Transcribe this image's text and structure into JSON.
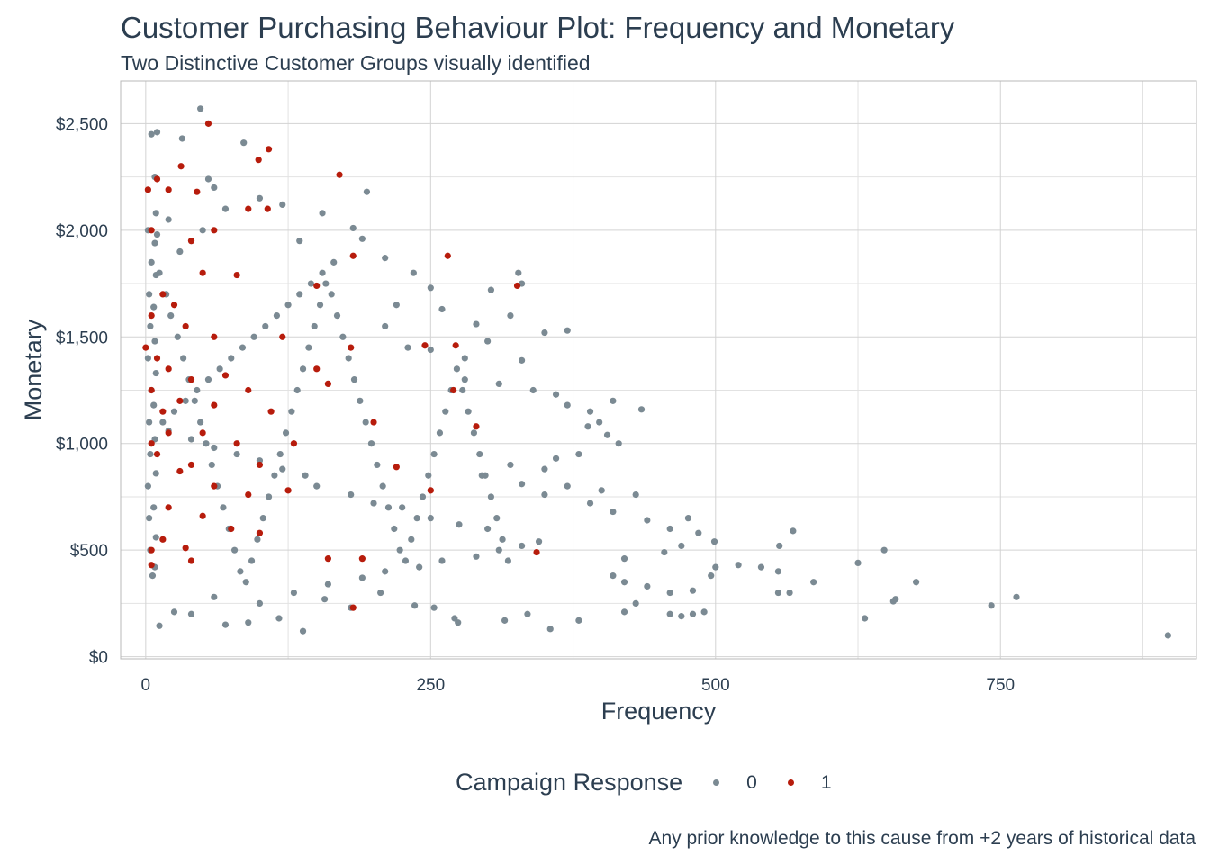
{
  "chart_data": {
    "type": "scatter",
    "title": "Customer Purchasing Behaviour Plot: Frequency and Monetary",
    "subtitle": "Two Distinctive Customer Groups visually identified",
    "caption": "Any prior knowledge to this cause from +2 years of historical data",
    "xlabel": "Frequency",
    "ylabel": "Monetary",
    "xlim": [
      -22,
      922
    ],
    "ylim": [
      -10,
      2700
    ],
    "x_ticks": [
      0,
      250,
      500,
      750
    ],
    "x_tick_labels": [
      "0",
      "250",
      "500",
      "750"
    ],
    "y_ticks": [
      0,
      500,
      1000,
      1500,
      2000,
      2500
    ],
    "y_tick_labels": [
      "$0",
      "$500",
      "$1,000",
      "$1,500",
      "$2,000",
      "$2,500"
    ],
    "grid": true,
    "legend": {
      "title": "Campaign Response",
      "position": "bottom"
    },
    "colors": {
      "0": "#7b8a93",
      "1": "#b71c0c",
      "text": "#2c3e50",
      "grid": "#d3d3d3"
    },
    "series": [
      {
        "name": "0",
        "color": "#7b8a93",
        "points": [
          [
            5,
            2450
          ],
          [
            10,
            2460
          ],
          [
            48,
            2570
          ],
          [
            32,
            2430
          ],
          [
            86,
            2410
          ],
          [
            55,
            2240
          ],
          [
            8,
            2250
          ],
          [
            60,
            2200
          ],
          [
            120,
            2120
          ],
          [
            155,
            2080
          ],
          [
            194,
            2180
          ],
          [
            182,
            2010
          ],
          [
            100,
            2150
          ],
          [
            70,
            2100
          ],
          [
            135,
            1950
          ],
          [
            190,
            1960
          ],
          [
            210,
            1870
          ],
          [
            250,
            1730
          ],
          [
            235,
            1800
          ],
          [
            303,
            1720
          ],
          [
            327,
            1800
          ],
          [
            330,
            1750
          ],
          [
            220,
            1650
          ],
          [
            260,
            1630
          ],
          [
            290,
            1560
          ],
          [
            320,
            1600
          ],
          [
            350,
            1520
          ],
          [
            370,
            1530
          ],
          [
            210,
            1550
          ],
          [
            230,
            1450
          ],
          [
            250,
            1440
          ],
          [
            280,
            1400
          ],
          [
            300,
            1480
          ],
          [
            330,
            1390
          ],
          [
            280,
            1300
          ],
          [
            310,
            1280
          ],
          [
            340,
            1250
          ],
          [
            360,
            1230
          ],
          [
            390,
            1150
          ],
          [
            410,
            1200
          ],
          [
            435,
            1160
          ],
          [
            370,
            1180
          ],
          [
            398,
            1100
          ],
          [
            388,
            1080
          ],
          [
            405,
            1040
          ],
          [
            415,
            1000
          ],
          [
            380,
            950
          ],
          [
            360,
            930
          ],
          [
            350,
            880
          ],
          [
            320,
            900
          ],
          [
            295,
            850
          ],
          [
            330,
            810
          ],
          [
            350,
            760
          ],
          [
            370,
            800
          ],
          [
            400,
            780
          ],
          [
            430,
            760
          ],
          [
            390,
            720
          ],
          [
            410,
            680
          ],
          [
            440,
            640
          ],
          [
            460,
            600
          ],
          [
            476,
            650
          ],
          [
            485,
            580
          ],
          [
            499,
            540
          ],
          [
            470,
            520
          ],
          [
            455,
            490
          ],
          [
            420,
            460
          ],
          [
            410,
            380
          ],
          [
            420,
            350
          ],
          [
            440,
            330
          ],
          [
            460,
            300
          ],
          [
            480,
            310
          ],
          [
            496,
            380
          ],
          [
            500,
            420
          ],
          [
            520,
            430
          ],
          [
            540,
            420
          ],
          [
            555,
            400
          ],
          [
            556,
            520
          ],
          [
            568,
            590
          ],
          [
            555,
            300
          ],
          [
            565,
            300
          ],
          [
            586,
            350
          ],
          [
            625,
            440
          ],
          [
            631,
            180
          ],
          [
            648,
            500
          ],
          [
            658,
            270
          ],
          [
            656,
            260
          ],
          [
            676,
            350
          ],
          [
            742,
            240
          ],
          [
            764,
            280
          ],
          [
            897,
            100
          ],
          [
            480,
            200
          ],
          [
            490,
            210
          ],
          [
            460,
            200
          ],
          [
            470,
            190
          ],
          [
            430,
            250
          ],
          [
            420,
            210
          ],
          [
            380,
            170
          ],
          [
            355,
            130
          ],
          [
            335,
            200
          ],
          [
            315,
            170
          ],
          [
            274,
            160
          ],
          [
            271,
            180
          ],
          [
            253,
            230
          ],
          [
            236,
            240
          ],
          [
            206,
            300
          ],
          [
            180,
            230
          ],
          [
            157,
            270
          ],
          [
            138,
            120
          ],
          [
            117,
            180
          ],
          [
            90,
            160
          ],
          [
            70,
            150
          ],
          [
            40,
            200
          ],
          [
            12,
            145
          ],
          [
            25,
            210
          ],
          [
            60,
            280
          ],
          [
            100,
            250
          ],
          [
            130,
            300
          ],
          [
            160,
            340
          ],
          [
            190,
            370
          ],
          [
            210,
            400
          ],
          [
            240,
            420
          ],
          [
            260,
            450
          ],
          [
            290,
            470
          ],
          [
            310,
            500
          ],
          [
            330,
            520
          ],
          [
            345,
            540
          ],
          [
            300,
            600
          ],
          [
            275,
            620
          ],
          [
            250,
            650
          ],
          [
            225,
            700
          ],
          [
            200,
            720
          ],
          [
            180,
            760
          ],
          [
            150,
            800
          ],
          [
            140,
            850
          ],
          [
            120,
            880
          ],
          [
            100,
            920
          ],
          [
            80,
            950
          ],
          [
            60,
            980
          ],
          [
            40,
            1020
          ],
          [
            20,
            1060
          ],
          [
            15,
            1100
          ],
          [
            25,
            1150
          ],
          [
            35,
            1200
          ],
          [
            45,
            1250
          ],
          [
            55,
            1300
          ],
          [
            65,
            1350
          ],
          [
            75,
            1400
          ],
          [
            85,
            1450
          ],
          [
            95,
            1500
          ],
          [
            105,
            1550
          ],
          [
            115,
            1600
          ],
          [
            125,
            1650
          ],
          [
            135,
            1700
          ],
          [
            145,
            1750
          ],
          [
            155,
            1800
          ],
          [
            165,
            1850
          ],
          [
            30,
            1900
          ],
          [
            40,
            1950
          ],
          [
            50,
            2000
          ],
          [
            20,
            2050
          ],
          [
            10,
            1980
          ],
          [
            12,
            1800
          ],
          [
            18,
            1700
          ],
          [
            22,
            1600
          ],
          [
            28,
            1500
          ],
          [
            33,
            1400
          ],
          [
            38,
            1300
          ],
          [
            43,
            1200
          ],
          [
            48,
            1100
          ],
          [
            53,
            1000
          ],
          [
            58,
            900
          ],
          [
            63,
            800
          ],
          [
            68,
            700
          ],
          [
            73,
            600
          ],
          [
            78,
            500
          ],
          [
            83,
            400
          ],
          [
            88,
            350
          ],
          [
            93,
            450
          ],
          [
            98,
            550
          ],
          [
            103,
            650
          ],
          [
            108,
            750
          ],
          [
            113,
            850
          ],
          [
            118,
            950
          ],
          [
            123,
            1050
          ],
          [
            128,
            1150
          ],
          [
            133,
            1250
          ],
          [
            138,
            1350
          ],
          [
            143,
            1450
          ],
          [
            148,
            1550
          ],
          [
            153,
            1650
          ],
          [
            158,
            1750
          ],
          [
            163,
            1700
          ],
          [
            168,
            1600
          ],
          [
            173,
            1500
          ],
          [
            178,
            1400
          ],
          [
            183,
            1300
          ],
          [
            188,
            1200
          ],
          [
            193,
            1100
          ],
          [
            198,
            1000
          ],
          [
            203,
            900
          ],
          [
            208,
            800
          ],
          [
            213,
            700
          ],
          [
            218,
            600
          ],
          [
            223,
            500
          ],
          [
            228,
            450
          ],
          [
            233,
            550
          ],
          [
            238,
            650
          ],
          [
            243,
            750
          ],
          [
            248,
            850
          ],
          [
            253,
            950
          ],
          [
            258,
            1050
          ],
          [
            263,
            1150
          ],
          [
            268,
            1250
          ],
          [
            273,
            1350
          ],
          [
            278,
            1250
          ],
          [
            283,
            1150
          ],
          [
            288,
            1050
          ],
          [
            293,
            950
          ],
          [
            298,
            850
          ],
          [
            303,
            750
          ],
          [
            308,
            650
          ],
          [
            313,
            550
          ],
          [
            318,
            450
          ],
          [
            6,
            380
          ],
          [
            4,
            500
          ],
          [
            3,
            650
          ],
          [
            2,
            800
          ],
          [
            4,
            950
          ],
          [
            3,
            1100
          ],
          [
            5,
            1250
          ],
          [
            2,
            1400
          ],
          [
            4,
            1550
          ],
          [
            3,
            1700
          ],
          [
            5,
            1850
          ],
          [
            2,
            2000
          ],
          [
            8,
            420
          ],
          [
            9,
            560
          ],
          [
            7,
            700
          ],
          [
            9,
            860
          ],
          [
            8,
            1020
          ],
          [
            7,
            1180
          ],
          [
            9,
            1330
          ],
          [
            8,
            1480
          ],
          [
            7,
            1640
          ],
          [
            9,
            1790
          ],
          [
            8,
            1940
          ],
          [
            9,
            2080
          ]
        ]
      },
      {
        "name": "1",
        "color": "#b71c0c",
        "points": [
          [
            55,
            2500
          ],
          [
            108,
            2380
          ],
          [
            99,
            2330
          ],
          [
            31,
            2300
          ],
          [
            170,
            2260
          ],
          [
            2,
            2190
          ],
          [
            10,
            2240
          ],
          [
            20,
            2190
          ],
          [
            45,
            2180
          ],
          [
            90,
            2100
          ],
          [
            107,
            2100
          ],
          [
            60,
            2000
          ],
          [
            5,
            2000
          ],
          [
            40,
            1950
          ],
          [
            265,
            1880
          ],
          [
            182,
            1880
          ],
          [
            50,
            1800
          ],
          [
            80,
            1790
          ],
          [
            326,
            1740
          ],
          [
            150,
            1740
          ],
          [
            15,
            1700
          ],
          [
            25,
            1650
          ],
          [
            5,
            1600
          ],
          [
            35,
            1550
          ],
          [
            60,
            1500
          ],
          [
            120,
            1500
          ],
          [
            180,
            1450
          ],
          [
            245,
            1460
          ],
          [
            272,
            1460
          ],
          [
            0,
            1450
          ],
          [
            10,
            1400
          ],
          [
            20,
            1350
          ],
          [
            40,
            1300
          ],
          [
            70,
            1320
          ],
          [
            150,
            1350
          ],
          [
            160,
            1280
          ],
          [
            270,
            1250
          ],
          [
            90,
            1250
          ],
          [
            5,
            1250
          ],
          [
            30,
            1200
          ],
          [
            60,
            1180
          ],
          [
            110,
            1150
          ],
          [
            15,
            1150
          ],
          [
            200,
            1100
          ],
          [
            290,
            1080
          ],
          [
            20,
            1050
          ],
          [
            50,
            1050
          ],
          [
            80,
            1000
          ],
          [
            130,
            1000
          ],
          [
            5,
            1000
          ],
          [
            10,
            950
          ],
          [
            40,
            900
          ],
          [
            100,
            900
          ],
          [
            220,
            890
          ],
          [
            30,
            870
          ],
          [
            60,
            800
          ],
          [
            90,
            760
          ],
          [
            125,
            780
          ],
          [
            250,
            780
          ],
          [
            20,
            700
          ],
          [
            50,
            660
          ],
          [
            75,
            600
          ],
          [
            100,
            580
          ],
          [
            15,
            550
          ],
          [
            35,
            510
          ],
          [
            5,
            500
          ],
          [
            160,
            460
          ],
          [
            190,
            460
          ],
          [
            40,
            450
          ],
          [
            343,
            490
          ],
          [
            5,
            430
          ],
          [
            182,
            230
          ]
        ]
      }
    ]
  }
}
